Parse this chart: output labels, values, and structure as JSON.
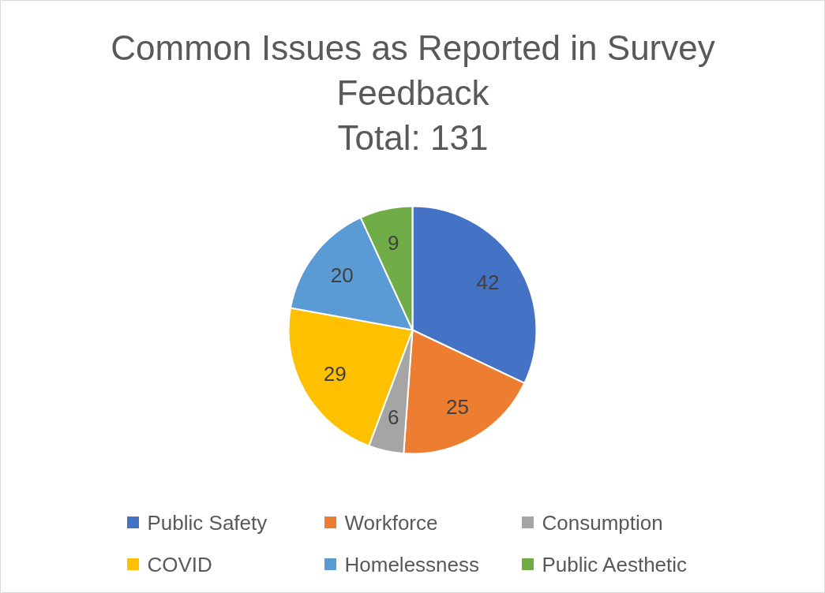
{
  "chart_data": {
    "type": "pie",
    "title": "Common Issues as Reported in Survey Feedback",
    "subtitle": "Total: 131",
    "categories": [
      "Public Safety",
      "Workforce",
      "Consumption",
      "COVID",
      "Homelessness",
      "Public Aesthetic"
    ],
    "values": [
      42,
      25,
      6,
      29,
      20,
      9
    ],
    "colors": [
      "#4472c4",
      "#ed7d31",
      "#a5a5a5",
      "#ffc000",
      "#5b9bd5",
      "#70ad47"
    ],
    "data_labels": true,
    "legend": "bottom"
  }
}
